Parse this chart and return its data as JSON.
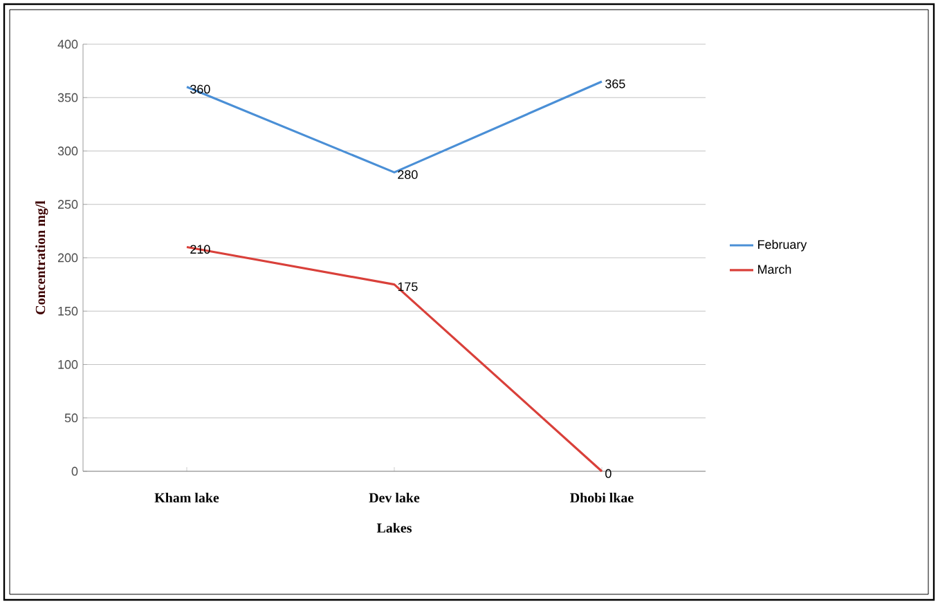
{
  "chart_data": {
    "type": "line",
    "xlabel": "Lakes",
    "ylabel": "Concentration mg/l",
    "categories": [
      "Kham lake",
      "Dev lake",
      "Dhobi lkae"
    ],
    "series": [
      {
        "name": "February",
        "color": "#4a8fd6",
        "values": [
          360,
          280,
          365
        ]
      },
      {
        "name": "March",
        "color": "#d9403a",
        "values": [
          210,
          175,
          0
        ]
      }
    ],
    "ylim": [
      0,
      400
    ],
    "yticks": [
      0,
      50,
      100,
      150,
      200,
      250,
      300,
      350,
      400
    ],
    "grid": "y",
    "legend": "right",
    "data_labels": true,
    "marker": "none",
    "line_style": "solid"
  }
}
